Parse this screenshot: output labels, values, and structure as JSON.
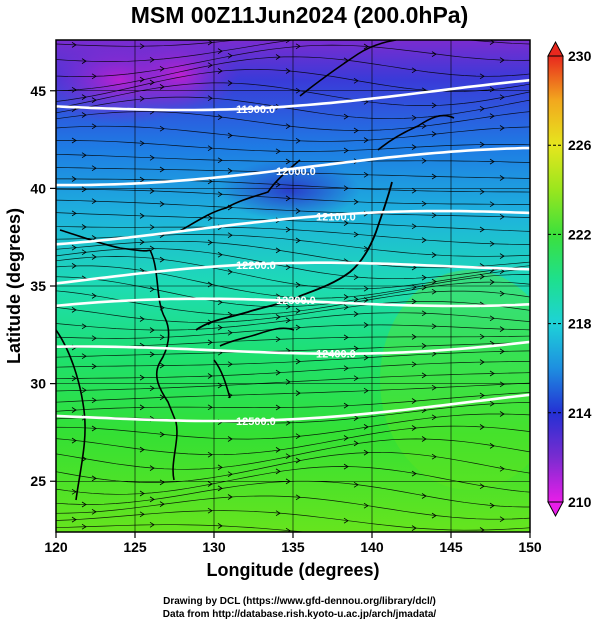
{
  "title": "MSM 00Z11Jun2024 (200.0hPa)",
  "x_axis": {
    "label": "Longitude (degrees)",
    "ticks": [
      "120",
      "125",
      "130",
      "135",
      "140",
      "145",
      "150"
    ],
    "range": [
      120,
      150
    ]
  },
  "y_axis": {
    "label": "Latitude  (degrees)",
    "ticks": [
      "25",
      "30",
      "35",
      "40",
      "45"
    ],
    "range": [
      22.4,
      47.6
    ]
  },
  "colorbar": {
    "ticks": [
      "210",
      "214",
      "218",
      "222",
      "226",
      "230"
    ],
    "range": [
      210,
      230
    ],
    "colors": [
      "#e81ee8",
      "#7a2cd0",
      "#2430d4",
      "#1e8fe0",
      "#1ed2d8",
      "#1ee08c",
      "#3ce03c",
      "#9ae61e",
      "#e6e61e",
      "#f2a81e",
      "#e8281e"
    ]
  },
  "contours": [
    {
      "label": "11900.0",
      "lat": 44.2
    },
    {
      "label": "12000.0",
      "lat": 40.6
    },
    {
      "label": "12100.0",
      "lat": 37.6
    },
    {
      "label": "12200.0",
      "lat": 35.2
    },
    {
      "label": "12300.0",
      "lat": 33.6
    },
    {
      "label": "12400.0",
      "lat": 31.4
    },
    {
      "label": "12500.0",
      "lat": 28.2
    }
  ],
  "credits": {
    "line1": "Drawing by DCL (https://www.gfd-dennou.org/library/dcl/)",
    "line2": "Data from http://database.rish.kyoto-u.ac.jp/arch/jmadata/"
  }
}
